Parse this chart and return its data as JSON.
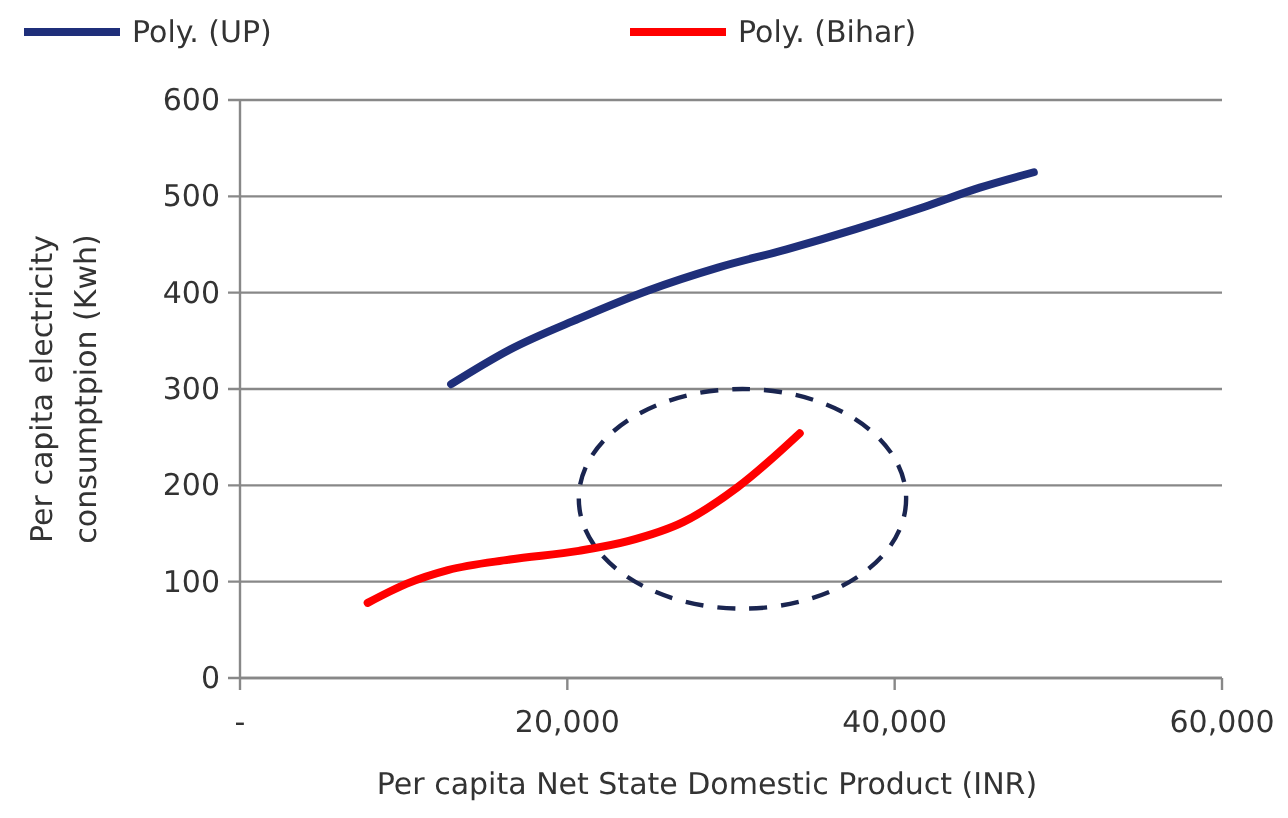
{
  "chart_data": {
    "type": "line",
    "xlabel": "Per capita Net State Domestic Product (INR)",
    "ylabel": "Per capita electricity consumptpion (Kwh)",
    "xlim": [
      0,
      60000
    ],
    "xticks": [
      {
        "value": 0,
        "label": "-"
      },
      {
        "value": 20000,
        "label": "20,000"
      },
      {
        "value": 40000,
        "label": "40,000"
      },
      {
        "value": 60000,
        "label": "60,000"
      }
    ],
    "ylim": [
      0,
      600
    ],
    "yticks": [
      0,
      100,
      200,
      300,
      400,
      500,
      600
    ],
    "grid": "y",
    "legend": "top",
    "marker": "none",
    "line_style": "solid",
    "series": [
      {
        "name": "Poly. (UP)",
        "color": "#1f2f7a",
        "x": [
          12900,
          16500,
          20700,
          24900,
          29200,
          33400,
          37600,
          41800,
          45200,
          48500
        ],
        "values": [
          305,
          341,
          373,
          402,
          426,
          445,
          466,
          489,
          509,
          525
        ]
      },
      {
        "name": "Poly. (Bihar)",
        "color": "#ff0000",
        "x": [
          7800,
          10200,
          12700,
          16500,
          20700,
          23700,
          27100,
          30400,
          34200
        ],
        "values": [
          78,
          98,
          112,
          123,
          132,
          142,
          162,
          198,
          254
        ]
      }
    ]
  }
}
